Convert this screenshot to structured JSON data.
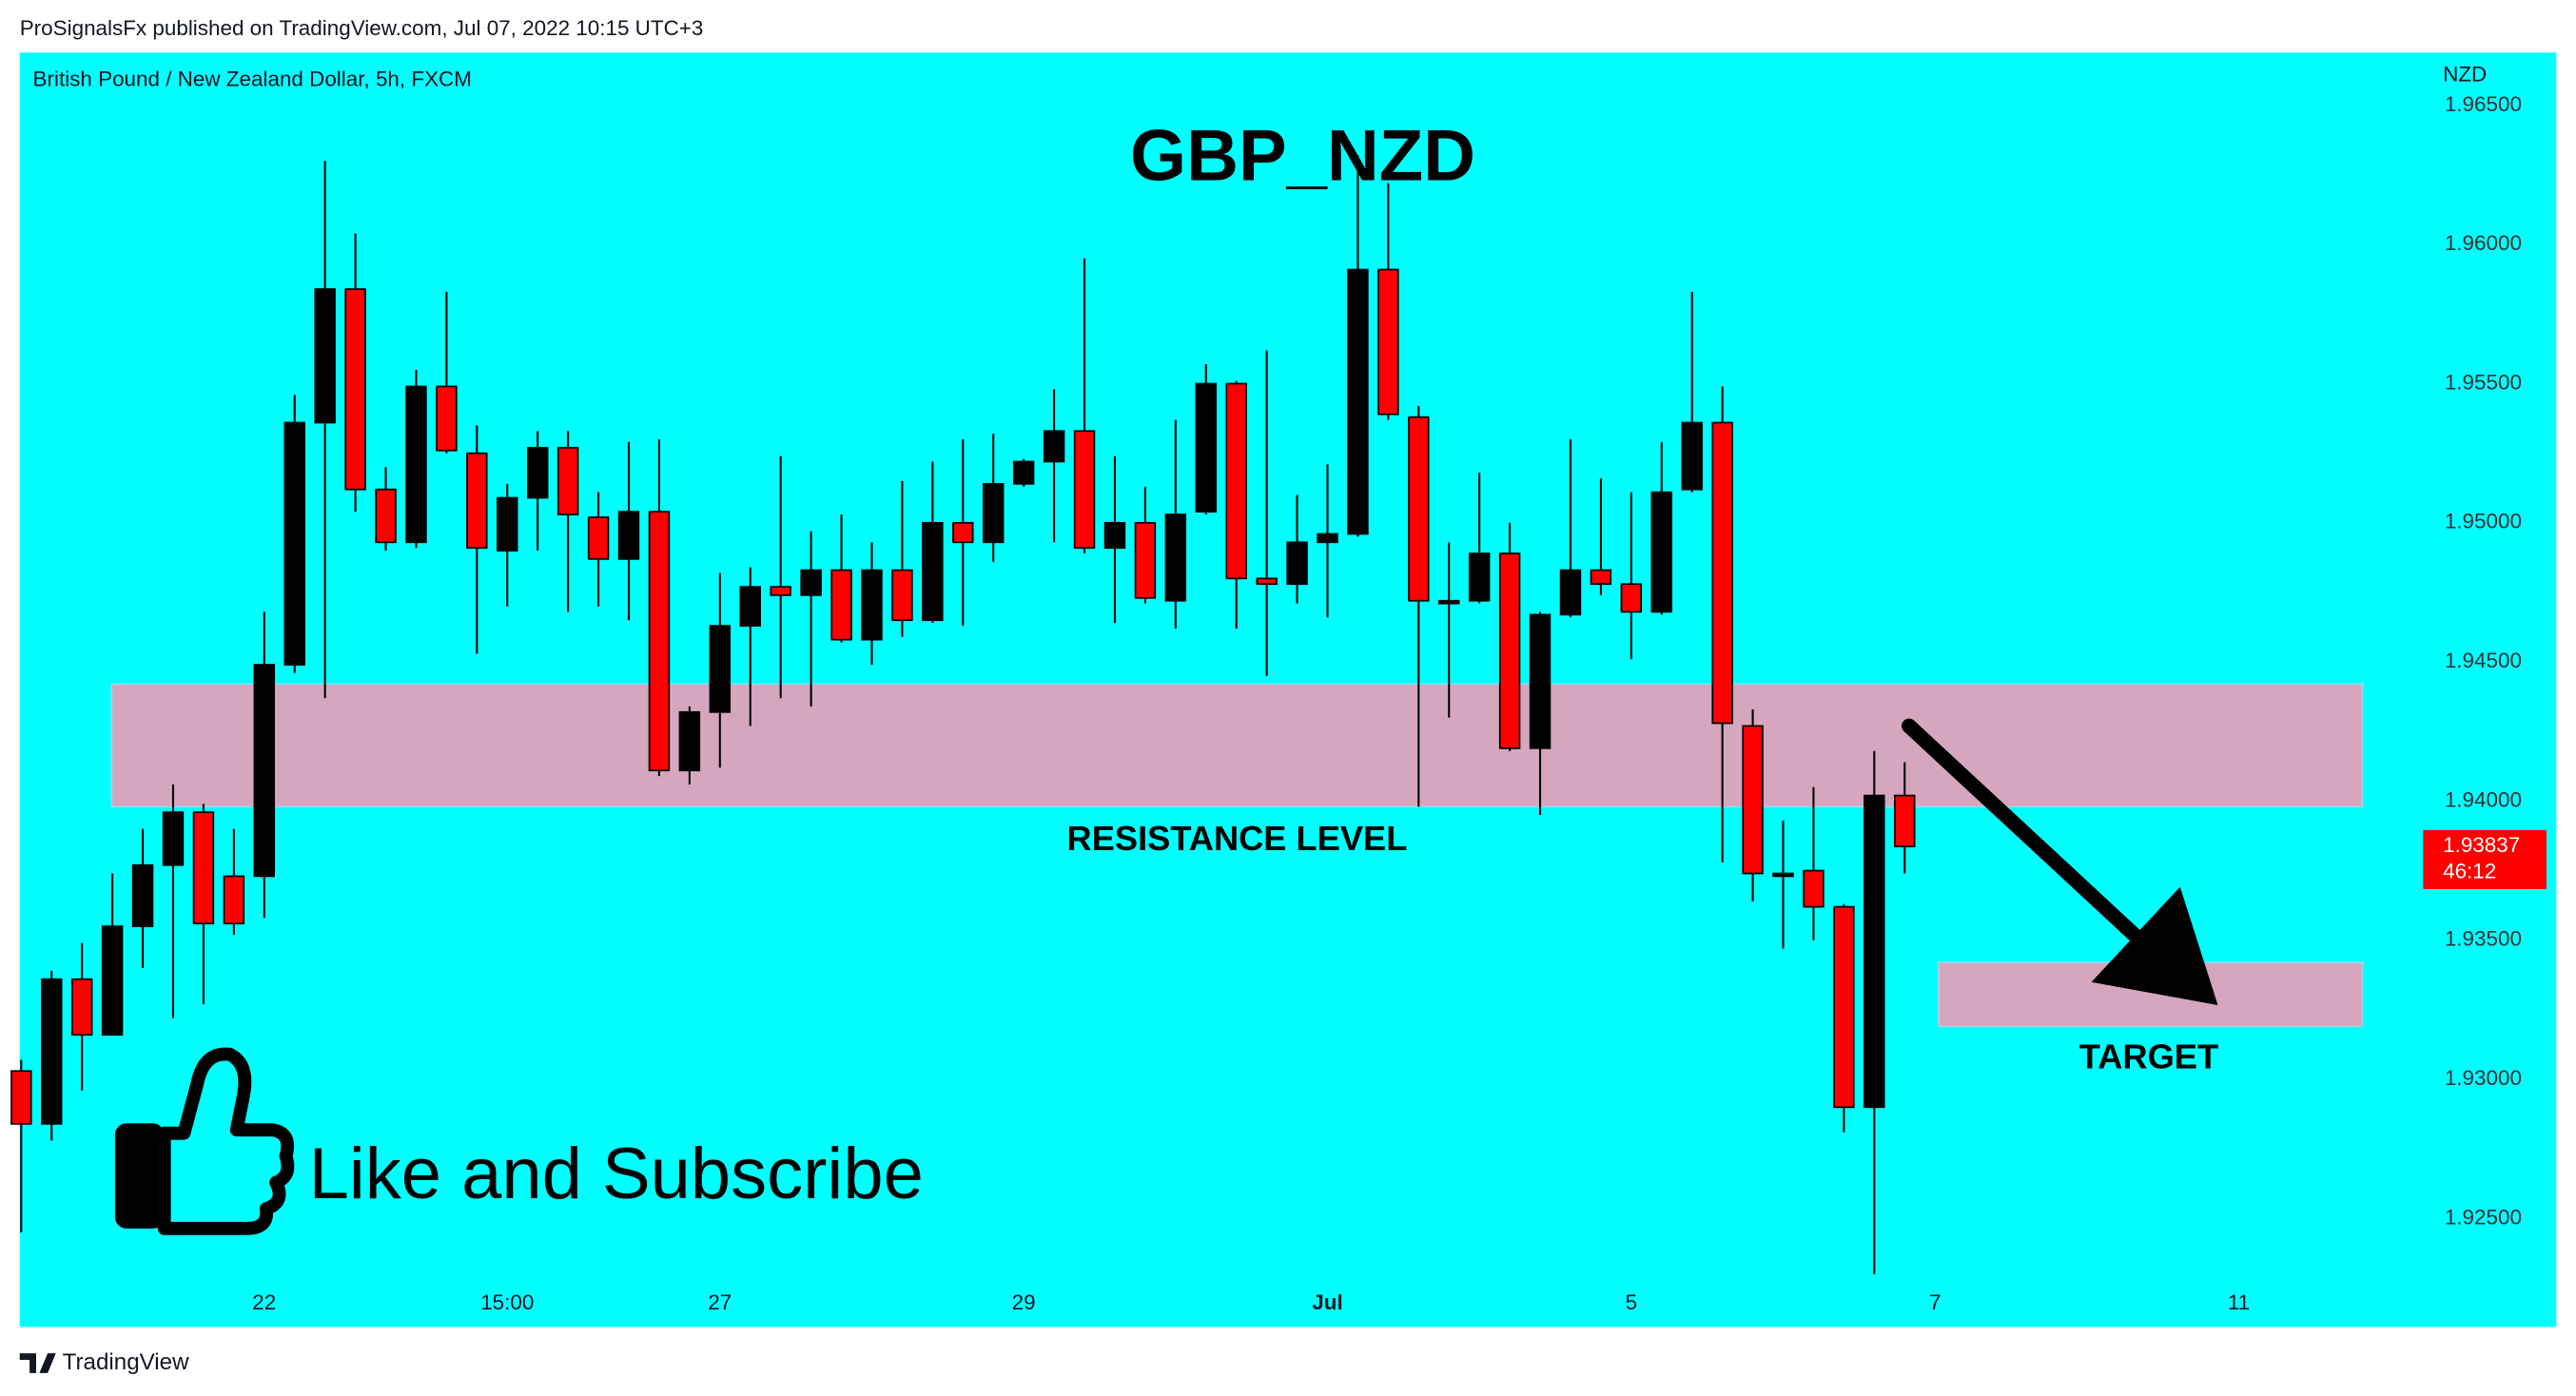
{
  "header": {
    "publisher": "ProSignalsFx published on TradingView.com, Jul 07, 2022 10:15 UTC+3"
  },
  "footer": {
    "brand": "TradingView"
  },
  "promo": {
    "text": "Like and Subscribe"
  },
  "chart_data": {
    "type": "candlestick",
    "title": "GBP_NZD",
    "subtitle": "British Pound / New Zealand Dollar, 5h, FXCM",
    "y_axis_label": "NZD",
    "countdown": "46:12",
    "up_color": "#000000",
    "down_color": "#ff0000",
    "background": "#00ffff",
    "open": [
      1.9303,
      1.9284,
      1.9336,
      1.9316,
      1.9355,
      1.9377,
      1.9396,
      1.9373,
      1.9373,
      1.9449,
      1.9536,
      1.9584,
      1.9512,
      1.9493,
      1.9549,
      1.9525,
      1.949,
      1.9509,
      1.9527,
      1.9502,
      1.9487,
      1.9504,
      1.9411,
      1.9432,
      1.9463,
      1.9477,
      1.9474,
      1.9483,
      1.9458,
      1.9483,
      1.9465,
      1.95,
      1.9493,
      1.9514,
      1.9522,
      1.9533,
      1.9491,
      1.95,
      1.9472,
      1.9504,
      1.955,
      1.948,
      1.9478,
      1.9493,
      1.9496,
      1.9591,
      1.9538,
      1.9471,
      1.9472,
      1.9489,
      1.9419,
      1.9467,
      1.9483,
      1.9478,
      1.9468,
      1.9512,
      1.9536,
      1.9427,
      1.9373,
      1.9375,
      1.9362,
      1.929,
      1.9402
    ],
    "high": [
      1.9307,
      1.9339,
      1.9349,
      1.9374,
      1.939,
      1.9406,
      1.9399,
      1.939,
      1.9468,
      1.9546,
      1.963,
      1.9604,
      1.952,
      1.9555,
      1.9583,
      1.9535,
      1.9514,
      1.9533,
      1.9533,
      1.9511,
      1.9529,
      1.953,
      1.9434,
      1.9482,
      1.9484,
      1.9524,
      1.9497,
      1.9503,
      1.9493,
      1.9515,
      1.9522,
      1.953,
      1.9532,
      1.9523,
      1.9548,
      1.9595,
      1.9524,
      1.9513,
      1.9537,
      1.9557,
      1.9551,
      1.9562,
      1.951,
      1.9521,
      1.9632,
      1.9622,
      1.9542,
      1.9493,
      1.9518,
      1.95,
      1.9468,
      1.953,
      1.9516,
      1.9511,
      1.9529,
      1.9583,
      1.9549,
      1.9433,
      1.9393,
      1.9405,
      1.9363,
      1.9418,
      1.9414
    ],
    "low": [
      1.9245,
      1.9278,
      1.9296,
      1.9316,
      1.934,
      1.9322,
      1.9327,
      1.9352,
      1.9358,
      1.9446,
      1.9437,
      1.9504,
      1.949,
      1.9491,
      1.9525,
      1.9453,
      1.947,
      1.949,
      1.9468,
      1.947,
      1.9465,
      1.9409,
      1.9406,
      1.9412,
      1.9427,
      1.9437,
      1.9434,
      1.9457,
      1.9449,
      1.9459,
      1.9464,
      1.9463,
      1.9486,
      1.9513,
      1.9493,
      1.9489,
      1.9464,
      1.9471,
      1.9462,
      1.9503,
      1.9462,
      1.9445,
      1.9471,
      1.9466,
      1.9495,
      1.9537,
      1.9398,
      1.943,
      1.9471,
      1.9418,
      1.9395,
      1.9466,
      1.9474,
      1.9451,
      1.9467,
      1.9511,
      1.9378,
      1.9364,
      1.9347,
      1.935,
      1.9281,
      1.923,
      1.9374
    ],
    "close": [
      1.9284,
      1.9336,
      1.9316,
      1.9355,
      1.9377,
      1.9396,
      1.9356,
      1.9356,
      1.9449,
      1.9536,
      1.9584,
      1.9512,
      1.9493,
      1.9549,
      1.9526,
      1.9491,
      1.9509,
      1.9527,
      1.9503,
      1.9487,
      1.9504,
      1.9411,
      1.9432,
      1.9463,
      1.9477,
      1.9474,
      1.9483,
      1.9458,
      1.9483,
      1.9465,
      1.95,
      1.9493,
      1.9514,
      1.9522,
      1.9533,
      1.9491,
      1.95,
      1.9473,
      1.9503,
      1.955,
      1.948,
      1.9478,
      1.9493,
      1.9496,
      1.9591,
      1.9539,
      1.9472,
      1.9472,
      1.9489,
      1.9419,
      1.9467,
      1.9483,
      1.9478,
      1.9468,
      1.9511,
      1.9536,
      1.9428,
      1.9374,
      1.9374,
      1.9362,
      1.929,
      1.9402,
      1.93837
    ],
    "xlim": [
      -0.05,
      78.8
    ],
    "xticks": [
      {
        "value": 8,
        "label": "22"
      },
      {
        "value": 16,
        "label": "15:00"
      },
      {
        "value": 23,
        "label": "27"
      },
      {
        "value": 33,
        "label": "29"
      },
      {
        "value": 43,
        "label": "Jul"
      },
      {
        "value": 53,
        "label": "5"
      },
      {
        "value": 63,
        "label": "7"
      },
      {
        "value": 73,
        "label": "11"
      }
    ],
    "ylim": [
      1.9211,
      1.9669
    ],
    "yticks": [
      {
        "value": 1.925,
        "label": "1.92500"
      },
      {
        "value": 1.93,
        "label": "1.93000"
      },
      {
        "value": 1.935,
        "label": "1.93500"
      },
      {
        "value": 1.94,
        "label": "1.94000"
      },
      {
        "value": 1.945,
        "label": "1.94500"
      },
      {
        "value": 1.95,
        "label": "1.95000"
      },
      {
        "value": 1.955,
        "label": "1.95500"
      },
      {
        "value": 1.96,
        "label": "1.96000"
      },
      {
        "value": 1.965,
        "label": "1.96500"
      }
    ],
    "zones": [
      {
        "label": "RESISTANCE LEVEL",
        "ylim": [
          1.9398,
          1.9442
        ],
        "color": "#d5a6bd"
      },
      {
        "label": "TARGET",
        "ylim": [
          1.9319,
          1.9342
        ],
        "color": "#d5a6bd"
      }
    ]
  }
}
